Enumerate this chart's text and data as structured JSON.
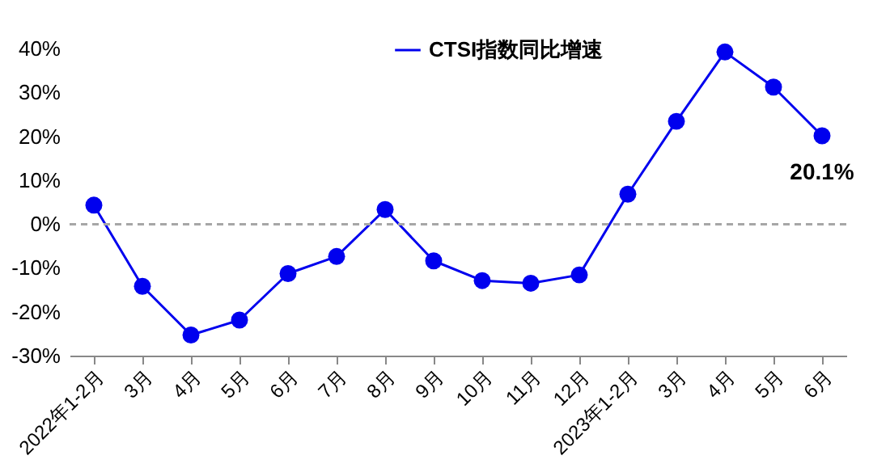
{
  "chart_data": {
    "type": "line",
    "categories": [
      "2022年1-2月",
      "3月",
      "4月",
      "5月",
      "6月",
      "7月",
      "8月",
      "9月",
      "10月",
      "11月",
      "12月",
      "2023年1-2月",
      "3月",
      "4月",
      "5月",
      "6月"
    ],
    "series": [
      {
        "name": "CTSI指数同比增速",
        "color": "#0000ee",
        "values": [
          4.3,
          -14.2,
          -25.3,
          -21.9,
          -11.3,
          -7.4,
          3.3,
          -8.4,
          -12.9,
          -13.5,
          -11.6,
          6.8,
          23.4,
          39.2,
          31.2,
          20.1
        ],
        "value_labels": [
          null,
          null,
          null,
          null,
          null,
          null,
          null,
          null,
          null,
          null,
          null,
          null,
          null,
          null,
          null,
          "20.1%"
        ]
      }
    ],
    "ylim": [
      -30,
      40
    ],
    "yticks": [
      {
        "value": -30,
        "label": "-30%"
      },
      {
        "value": -20,
        "label": "-20%"
      },
      {
        "value": -10,
        "label": "-10%"
      },
      {
        "value": 0,
        "label": "0%"
      },
      {
        "value": 10,
        "label": "10%"
      },
      {
        "value": 20,
        "label": "20%"
      },
      {
        "value": 30,
        "label": "30%"
      },
      {
        "value": 40,
        "label": "40%"
      }
    ],
    "ref_lines": [
      {
        "axis": "y",
        "value": 0,
        "color": "#a6a6a6",
        "line_style": "dashed"
      }
    ],
    "marker": "circle",
    "line_style": "solid",
    "grid": false,
    "legend": "top"
  }
}
